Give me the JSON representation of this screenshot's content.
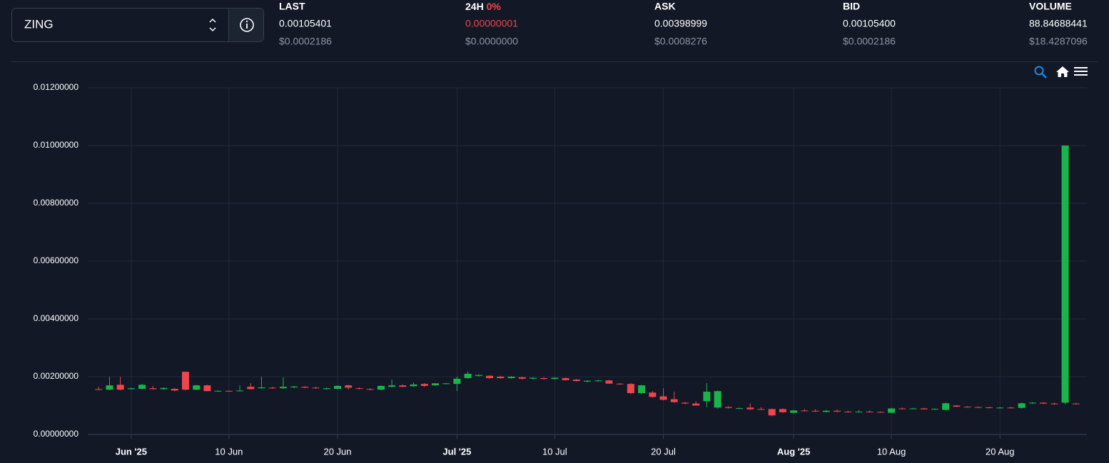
{
  "selector": {
    "symbol": "ZING"
  },
  "stats": [
    {
      "label": "LAST",
      "value": "0.00105401",
      "usd": "$0.0002186"
    },
    {
      "label": "24H",
      "change": "0%",
      "value": "0.00000001",
      "usd": "$0.0000000"
    },
    {
      "label": "ASK",
      "value": "0.00398999",
      "usd": "$0.0008276"
    },
    {
      "label": "BID",
      "value": "0.00105400",
      "usd": "$0.0002186"
    },
    {
      "label": "VOLUME",
      "value": "88.84688441",
      "usd": "$18.4287096"
    }
  ],
  "chart_data": {
    "type": "candlestick",
    "up_color": "#1ab54a",
    "down_color": "#f0454a",
    "grid": true,
    "xlim": [
      "2025-05-28",
      "2025-08-28"
    ],
    "xticks": [
      {
        "value": "2025-06-01",
        "label": "Jun '25"
      },
      {
        "value": "2025-06-10",
        "label": "10 Jun"
      },
      {
        "value": "2025-06-20",
        "label": "20 Jun"
      },
      {
        "value": "2025-07-01",
        "label": "Jul '25"
      },
      {
        "value": "2025-07-10",
        "label": "10 Jul"
      },
      {
        "value": "2025-07-20",
        "label": "20 Jul"
      },
      {
        "value": "2025-08-01",
        "label": "Aug '25"
      },
      {
        "value": "2025-08-10",
        "label": "10 Aug"
      },
      {
        "value": "2025-08-20",
        "label": "20 Aug"
      }
    ],
    "ylim": [
      0,
      0.012
    ],
    "yticks": [
      {
        "value": 0,
        "label": "0.00000000"
      },
      {
        "value": 0.002,
        "label": "0.00200000"
      },
      {
        "value": 0.004,
        "label": "0.00400000"
      },
      {
        "value": 0.006,
        "label": "0.00600000"
      },
      {
        "value": 0.008,
        "label": "0.00800000"
      },
      {
        "value": 0.01,
        "label": "0.01000000"
      },
      {
        "value": 0.012,
        "label": "0.01200000"
      }
    ],
    "x": [
      "2025-05-29",
      "2025-05-30",
      "2025-05-31",
      "2025-06-01",
      "2025-06-02",
      "2025-06-03",
      "2025-06-04",
      "2025-06-05",
      "2025-06-06",
      "2025-06-07",
      "2025-06-08",
      "2025-06-09",
      "2025-06-10",
      "2025-06-11",
      "2025-06-12",
      "2025-06-13",
      "2025-06-14",
      "2025-06-15",
      "2025-06-16",
      "2025-06-17",
      "2025-06-18",
      "2025-06-19",
      "2025-06-20",
      "2025-06-21",
      "2025-06-22",
      "2025-06-23",
      "2025-06-24",
      "2025-06-25",
      "2025-06-26",
      "2025-06-27",
      "2025-06-28",
      "2025-06-29",
      "2025-06-30",
      "2025-07-01",
      "2025-07-02",
      "2025-07-03",
      "2025-07-04",
      "2025-07-05",
      "2025-07-06",
      "2025-07-07",
      "2025-07-08",
      "2025-07-09",
      "2025-07-10",
      "2025-07-11",
      "2025-07-12",
      "2025-07-13",
      "2025-07-14",
      "2025-07-15",
      "2025-07-16",
      "2025-07-17",
      "2025-07-18",
      "2025-07-19",
      "2025-07-20",
      "2025-07-21",
      "2025-07-22",
      "2025-07-23",
      "2025-07-24",
      "2025-07-25",
      "2025-07-26",
      "2025-07-27",
      "2025-07-28",
      "2025-07-29",
      "2025-07-30",
      "2025-07-31",
      "2025-08-01",
      "2025-08-02",
      "2025-08-03",
      "2025-08-04",
      "2025-08-05",
      "2025-08-06",
      "2025-08-07",
      "2025-08-08",
      "2025-08-09",
      "2025-08-10",
      "2025-08-11",
      "2025-08-12",
      "2025-08-13",
      "2025-08-14",
      "2025-08-15",
      "2025-08-16",
      "2025-08-17",
      "2025-08-18",
      "2025-08-19",
      "2025-08-20",
      "2025-08-21",
      "2025-08-22",
      "2025-08-23",
      "2025-08-24",
      "2025-08-25",
      "2025-08-26",
      "2025-08-27"
    ],
    "open": [
      0.00157,
      0.00155,
      0.00172,
      0.00157,
      0.00158,
      0.0016,
      0.00157,
      0.00158,
      0.00217,
      0.00155,
      0.0017,
      0.0015,
      0.00151,
      0.0015,
      0.00165,
      0.0016,
      0.00162,
      0.0016,
      0.00163,
      0.00165,
      0.00162,
      0.00157,
      0.00158,
      0.0017,
      0.0016,
      0.00157,
      0.00155,
      0.00165,
      0.0017,
      0.00167,
      0.00175,
      0.0017,
      0.00175,
      0.00175,
      0.00195,
      0.00203,
      0.00203,
      0.002,
      0.00195,
      0.00198,
      0.00193,
      0.00195,
      0.00192,
      0.00195,
      0.0019,
      0.00183,
      0.00185,
      0.00187,
      0.00176,
      0.00175,
      0.00143,
      0.00145,
      0.00132,
      0.00122,
      0.0011,
      0.00107,
      0.00115,
      0.00093,
      0.00095,
      0.0009,
      0.00093,
      0.00088,
      0.00088,
      0.00088,
      0.00075,
      0.00083,
      0.00082,
      0.00078,
      0.00082,
      0.00079,
      0.00078,
      0.00079,
      0.00078,
      0.00075,
      0.0009,
      0.00088,
      0.0009,
      0.00087,
      0.00085,
      0.001,
      0.00096,
      0.00095,
      0.00094,
      0.00091,
      0.00093,
      0.00092,
      0.00108,
      0.0011,
      0.00107,
      0.0011,
      0.00107
    ],
    "high": [
      0.00165,
      0.002,
      0.002,
      0.00162,
      0.00175,
      0.00168,
      0.00163,
      0.0016,
      0.00218,
      0.00172,
      0.00172,
      0.00153,
      0.00153,
      0.0017,
      0.00178,
      0.002,
      0.00165,
      0.00198,
      0.00168,
      0.00167,
      0.00165,
      0.00162,
      0.0017,
      0.00172,
      0.00163,
      0.0016,
      0.0017,
      0.0019,
      0.00173,
      0.0018,
      0.00178,
      0.00178,
      0.00178,
      0.002,
      0.00218,
      0.00208,
      0.00205,
      0.00203,
      0.00202,
      0.002,
      0.00198,
      0.00198,
      0.00198,
      0.00197,
      0.00192,
      0.00188,
      0.00189,
      0.00189,
      0.00178,
      0.00178,
      0.00172,
      0.0015,
      0.0016,
      0.00148,
      0.00113,
      0.00115,
      0.00178,
      0.00152,
      0.00098,
      0.00093,
      0.00108,
      0.00095,
      0.0009,
      0.0009,
      0.00085,
      0.00088,
      0.00087,
      0.00085,
      0.00086,
      0.00082,
      0.00085,
      0.00083,
      0.0008,
      0.00092,
      0.00093,
      0.00092,
      0.00092,
      0.0009,
      0.0011,
      0.00102,
      0.00098,
      0.00097,
      0.00096,
      0.00095,
      0.00096,
      0.0011,
      0.00112,
      0.00112,
      0.0011,
      0.01,
      0.00109
    ],
    "low": [
      0.00153,
      0.00153,
      0.00153,
      0.00155,
      0.00156,
      0.00155,
      0.00155,
      0.0015,
      0.00152,
      0.00153,
      0.0015,
      0.00148,
      0.00149,
      0.00148,
      0.00155,
      0.00158,
      0.00158,
      0.00158,
      0.0016,
      0.0016,
      0.00158,
      0.00155,
      0.00156,
      0.00155,
      0.00156,
      0.00153,
      0.00153,
      0.00163,
      0.00163,
      0.00165,
      0.00165,
      0.00168,
      0.00173,
      0.0015,
      0.00193,
      0.002,
      0.00193,
      0.00193,
      0.00193,
      0.0019,
      0.0019,
      0.0019,
      0.0019,
      0.00187,
      0.00183,
      0.0018,
      0.00182,
      0.00175,
      0.00172,
      0.0014,
      0.0014,
      0.00127,
      0.00118,
      0.0011,
      0.00105,
      0.001,
      0.00095,
      0.0009,
      0.0009,
      0.00088,
      0.00085,
      0.00085,
      0.00063,
      0.00075,
      0.00073,
      0.0008,
      0.00078,
      0.00076,
      0.00077,
      0.00076,
      0.00076,
      0.00076,
      0.00075,
      0.00074,
      0.00087,
      0.00087,
      0.00086,
      0.00085,
      0.00083,
      0.00095,
      0.00093,
      0.00092,
      0.0009,
      0.0009,
      0.0009,
      0.0009,
      0.00105,
      0.00105,
      0.00103,
      0.00105,
      0.00104
    ],
    "close": [
      0.00155,
      0.0017,
      0.00155,
      0.0016,
      0.00172,
      0.00157,
      0.00161,
      0.00152,
      0.00155,
      0.0017,
      0.0015,
      0.00151,
      0.0015,
      0.00152,
      0.00157,
      0.00163,
      0.0016,
      0.00165,
      0.00166,
      0.00162,
      0.0016,
      0.0016,
      0.00168,
      0.00162,
      0.00158,
      0.00155,
      0.00168,
      0.0017,
      0.00165,
      0.00173,
      0.00168,
      0.00177,
      0.00177,
      0.00193,
      0.0021,
      0.00206,
      0.00195,
      0.00195,
      0.002,
      0.00193,
      0.00196,
      0.00192,
      0.00196,
      0.00188,
      0.00185,
      0.00186,
      0.00187,
      0.00176,
      0.00174,
      0.00143,
      0.0017,
      0.0013,
      0.0012,
      0.00112,
      0.00107,
      0.001,
      0.00148,
      0.0015,
      0.00092,
      0.00091,
      0.00087,
      0.00087,
      0.00066,
      0.00077,
      0.00083,
      0.00082,
      0.0008,
      0.00082,
      0.00079,
      0.00078,
      0.00079,
      0.00078,
      0.00077,
      0.0009,
      0.00088,
      0.0009,
      0.00087,
      0.00089,
      0.00108,
      0.00096,
      0.00095,
      0.00094,
      0.00092,
      0.00093,
      0.00092,
      0.00108,
      0.0011,
      0.00107,
      0.00105,
      0.01,
      0.00105
    ]
  }
}
